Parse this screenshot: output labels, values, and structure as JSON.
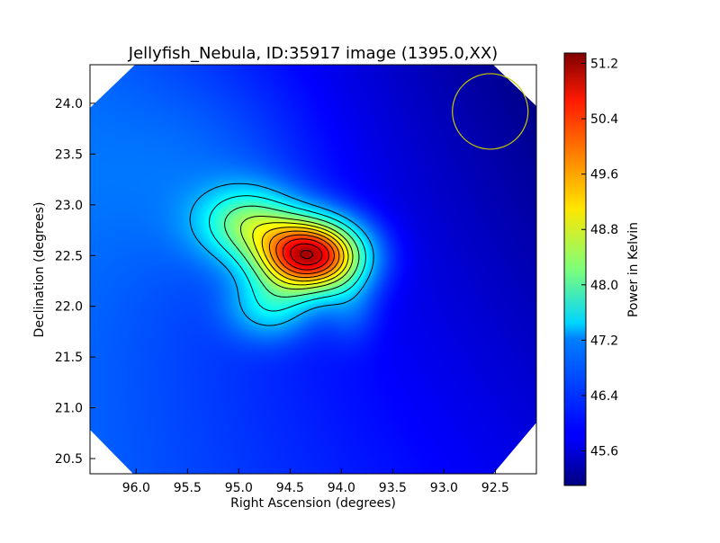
{
  "chart_data": {
    "type": "heatmap",
    "title": "Jellyfish_Nebula, ID:35917 image (1395.0,XX)",
    "xlabel": "Right Ascension (degrees)",
    "ylabel": "Declination (degrees)",
    "xlim": [
      96.45,
      92.1
    ],
    "ylim": [
      20.35,
      24.38
    ],
    "x_axis_inverted": true,
    "xticks": [
      "96.0",
      "95.5",
      "95.0",
      "94.5",
      "94.0",
      "93.5",
      "93.0",
      "92.5"
    ],
    "xtick_values": [
      96.0,
      95.5,
      95.0,
      94.5,
      94.0,
      93.5,
      93.0,
      92.5
    ],
    "yticks": [
      "20.5",
      "21.0",
      "21.5",
      "22.0",
      "22.5",
      "23.0",
      "23.5",
      "24.0"
    ],
    "ytick_values": [
      20.5,
      21.0,
      21.5,
      22.0,
      22.5,
      23.0,
      23.5,
      24.0
    ],
    "colormap": "jet",
    "colorbar": {
      "label": "Power in Kelvin",
      "range": [
        45.1,
        51.35
      ],
      "ticks": [
        "45.6",
        "46.4",
        "47.2",
        "48.0",
        "48.8",
        "49.6",
        "50.4",
        "51.2"
      ],
      "tick_values": [
        45.6,
        46.4,
        47.2,
        48.0,
        48.8,
        49.6,
        50.4,
        51.2
      ]
    },
    "peak": {
      "ra": 94.3,
      "dec": 22.55,
      "value": 51.3
    },
    "beam_circle": {
      "ra": 92.55,
      "dec": 23.92,
      "radius_deg": 0.37,
      "color": "#c8c800"
    },
    "contours": "black"
  }
}
